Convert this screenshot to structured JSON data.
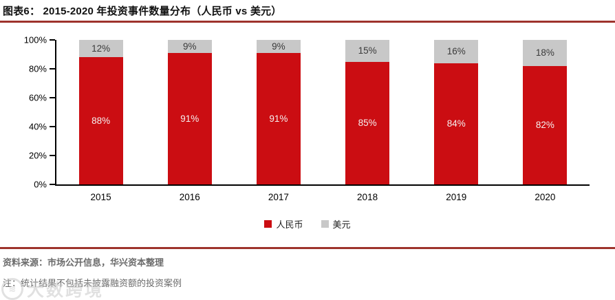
{
  "header": {
    "title": "图表6：  2015-2020 年投资事件数量分布（人民币 vs 美元）",
    "rule_color": "#9e332c"
  },
  "chart_data": {
    "type": "bar",
    "stacked": true,
    "title": "2015-2020 年投资事件数量分布（人民币 vs 美元）",
    "categories": [
      "2015",
      "2016",
      "2017",
      "2018",
      "2019",
      "2020"
    ],
    "series": [
      {
        "name": "人民币",
        "color": "#cb0d12",
        "label_color": "#f5f1f0",
        "values": [
          88,
          91,
          91,
          85,
          84,
          82
        ]
      },
      {
        "name": "美元",
        "color": "#c8c8c8",
        "label_color": "#3a3a3a",
        "values": [
          12,
          9,
          9,
          15,
          16,
          18
        ]
      }
    ],
    "value_suffix": "%",
    "yticks": [
      0,
      20,
      40,
      60,
      80,
      100
    ],
    "ytick_suffix": "%",
    "ylim": [
      0,
      100
    ],
    "grid": false,
    "legend_position": "bottom",
    "xlabel": "",
    "ylabel": ""
  },
  "footer": {
    "source": "资料来源：市场公开信息，华兴资本整理",
    "note": "注：统计结果不包括未披露融资额的投资案例",
    "rule_color": "#9e332c"
  },
  "watermark": {
    "text": "大数跨境"
  }
}
